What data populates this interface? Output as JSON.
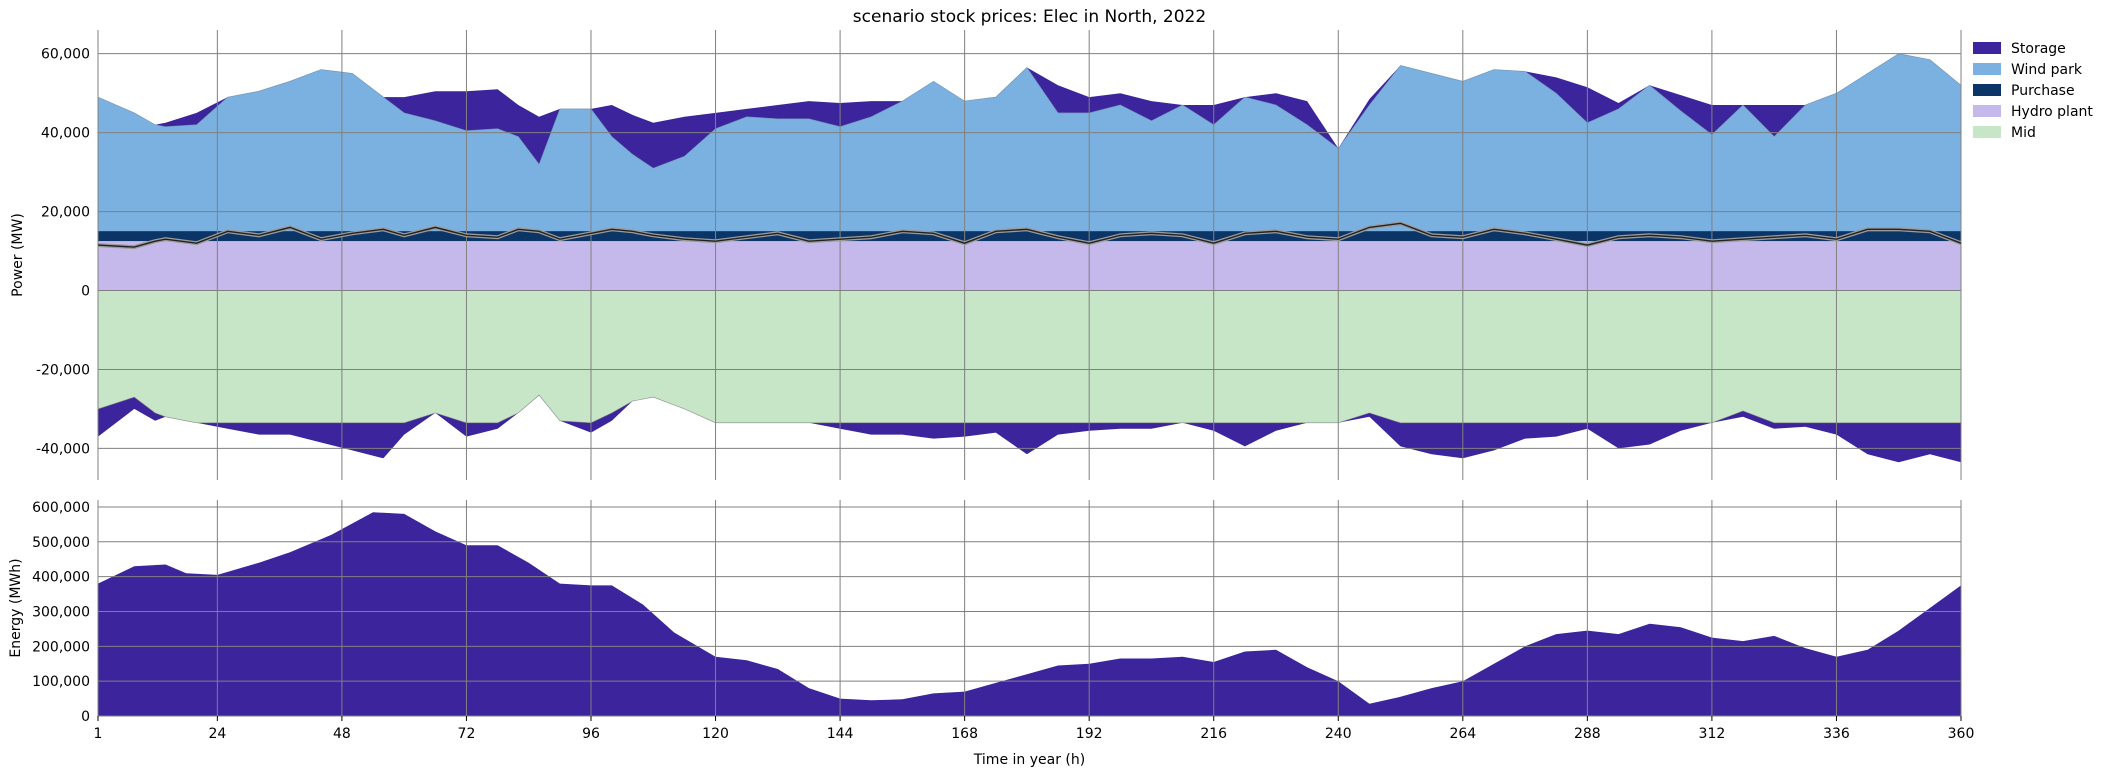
{
  "chart_data": [
    {
      "panel": "power",
      "type": "area",
      "title": "scenario stock prices: Elec in North, 2022",
      "xlabel": "",
      "ylabel": "Power (MW)",
      "xlim": [
        1,
        360
      ],
      "ylim": [
        -48000,
        66000
      ],
      "x_ticks": [
        1,
        24,
        48,
        72,
        96,
        120,
        144,
        168,
        192,
        216,
        240,
        264,
        288,
        312,
        336,
        360
      ],
      "y_ticks": [
        -40000,
        -20000,
        0,
        20000,
        40000,
        60000
      ],
      "y_tick_labels": [
        "-40,000",
        "-20,000",
        "0",
        "20,000",
        "40,000",
        "60,000"
      ],
      "grid": true,
      "legend_position": "outside top-right",
      "x": [
        1,
        8,
        12,
        14,
        20,
        26,
        32,
        38,
        44,
        50,
        56,
        60,
        66,
        72,
        78,
        82,
        86,
        90,
        96,
        100,
        104,
        108,
        114,
        120,
        126,
        132,
        138,
        144,
        150,
        156,
        162,
        168,
        174,
        180,
        186,
        192,
        198,
        204,
        210,
        216,
        222,
        228,
        234,
        240,
        246,
        252,
        258,
        264,
        270,
        276,
        282,
        288,
        294,
        300,
        306,
        312,
        318,
        324,
        330,
        336,
        342,
        348,
        354,
        360
      ],
      "series": [
        {
          "name": "Mid",
          "color": "#c7e5c7",
          "values": [
            -30000,
            -27000,
            -31000,
            -32000,
            -33500,
            -33500,
            -33500,
            -33500,
            -33500,
            -33500,
            -33500,
            -33500,
            -31000,
            -33500,
            -33500,
            -31000,
            -26500,
            -33000,
            -33500,
            -31000,
            -28000,
            -27000,
            -30000,
            -33500,
            -33500,
            -33500,
            -33500,
            -33500,
            -33500,
            -33500,
            -33500,
            -33500,
            -33500,
            -33500,
            -33500,
            -33500,
            -33500,
            -33500,
            -33500,
            -33500,
            -33500,
            -33500,
            -33500,
            -33500,
            -31000,
            -33500,
            -33500,
            -33500,
            -33500,
            -33500,
            -33500,
            -33500,
            -33500,
            -33500,
            -33500,
            -33500,
            -30500,
            -33500,
            -33500,
            -33500,
            -33500,
            -33500,
            -33500,
            -33500
          ]
        },
        {
          "name": "Hydro plant",
          "color": "#c5b9ec",
          "values": [
            12500,
            12500,
            12500,
            12500,
            12500,
            12500,
            12500,
            12500,
            12500,
            12500,
            12500,
            12500,
            12500,
            12500,
            12500,
            12500,
            12500,
            12500,
            12500,
            12500,
            12500,
            12500,
            12500,
            12500,
            12500,
            12500,
            12500,
            12500,
            12500,
            12500,
            12500,
            12500,
            12500,
            12500,
            12500,
            12500,
            12500,
            12500,
            12500,
            12500,
            12500,
            12500,
            12500,
            12500,
            12500,
            12500,
            12500,
            12500,
            12500,
            12500,
            12500,
            12500,
            12500,
            12500,
            12500,
            12500,
            12500,
            12500,
            12500,
            12500,
            12500,
            12500,
            12500,
            12500
          ]
        },
        {
          "name": "Purchase",
          "color": "#0b3566",
          "values": [
            2500,
            2500,
            2500,
            2500,
            2500,
            2500,
            2500,
            2500,
            2500,
            2500,
            2500,
            2500,
            2500,
            2500,
            2500,
            2500,
            2500,
            2500,
            2500,
            2500,
            2500,
            2500,
            2500,
            2500,
            2500,
            2500,
            2500,
            2500,
            2500,
            2500,
            2500,
            2500,
            2500,
            2500,
            2500,
            2500,
            2500,
            2500,
            2500,
            2500,
            2500,
            2500,
            2500,
            2500,
            2500,
            2500,
            2500,
            2500,
            2500,
            2500,
            2500,
            2500,
            2500,
            2500,
            2500,
            2500,
            2500,
            2500,
            2500,
            2500,
            2500,
            2500,
            2500,
            2500
          ]
        },
        {
          "name": "Wind park",
          "color": "#7ab1e0",
          "values": [
            34000,
            30000,
            27000,
            26500,
            27000,
            34000,
            35500,
            38000,
            41000,
            40000,
            34000,
            30000,
            28000,
            25500,
            26000,
            24000,
            17000,
            31000,
            31000,
            24000,
            19500,
            16000,
            19000,
            26000,
            29000,
            28500,
            28500,
            26500,
            29000,
            33000,
            38000,
            33000,
            34000,
            41500,
            30000,
            30000,
            32000,
            28000,
            32000,
            27000,
            34000,
            32000,
            27000,
            21000,
            32000,
            42000,
            40000,
            38000,
            41000,
            40500,
            35000,
            27500,
            31000,
            37000,
            30500,
            24500,
            32000,
            24000,
            32000,
            35000,
            40000,
            45000,
            43500,
            37000
          ]
        },
        {
          "name": "Storage",
          "color": "#3b249c",
          "values": [
            0,
            0,
            0,
            1000,
            3000,
            0,
            0,
            0,
            0,
            0,
            0,
            4000,
            7500,
            10000,
            10000,
            8000,
            12000,
            0,
            0,
            8000,
            10000,
            11500,
            10000,
            4000,
            2000,
            3500,
            4500,
            6000,
            4000,
            0,
            0,
            0,
            0,
            0,
            7000,
            4000,
            3000,
            5000,
            0,
            5000,
            0,
            3000,
            6000,
            0,
            1500,
            0,
            0,
            0,
            0,
            0,
            4000,
            9000,
            1500,
            0,
            4000,
            7500,
            0,
            8000,
            0,
            0,
            0,
            0,
            0,
            0
          ]
        },
        {
          "name": "Storage (charging)",
          "color": "#3b249c",
          "values": [
            -7000,
            -3000,
            -2000,
            0,
            0,
            -1500,
            -3000,
            -3000,
            -5000,
            -7000,
            -9000,
            -3000,
            0,
            -3500,
            -1500,
            0,
            0,
            0,
            -2500,
            -2000,
            0,
            0,
            0,
            0,
            0,
            0,
            0,
            -1500,
            -3000,
            -3000,
            -4000,
            -3500,
            -2500,
            -8000,
            -3000,
            -2000,
            -1500,
            -1500,
            0,
            -2000,
            -6000,
            -2000,
            0,
            0,
            -1000,
            -6000,
            -8000,
            -9000,
            -7000,
            -4000,
            -3500,
            -1500,
            -6500,
            -5500,
            -2000,
            0,
            -1500,
            -1500,
            -1000,
            -3000,
            -8000,
            -10000,
            -8000,
            -10000
          ]
        }
      ],
      "demand_line": {
        "color": "#222222",
        "values": [
          11500,
          11000,
          12500,
          13000,
          12000,
          15000,
          14000,
          16000,
          13000,
          14500,
          15500,
          14000,
          16000,
          14000,
          13500,
          15500,
          15000,
          13000,
          14500,
          15500,
          15000,
          14000,
          13000,
          12500,
          13500,
          14500,
          12500,
          13000,
          13500,
          15000,
          14500,
          12000,
          15000,
          15500,
          13500,
          12000,
          14000,
          14500,
          14000,
          12000,
          14500,
          15000,
          13500,
          13000,
          16000,
          17000,
          14000,
          13500,
          15500,
          14500,
          13000,
          11500,
          13500,
          14000,
          13500,
          12500,
          13000,
          13500,
          14000,
          13000,
          15500,
          15500,
          15000,
          12000
        ]
      }
    },
    {
      "panel": "energy",
      "type": "area",
      "xlabel": "Time in year (h)",
      "ylabel": "Energy (MWh)",
      "xlim": [
        1,
        360
      ],
      "ylim": [
        0,
        620000
      ],
      "x_ticks": [
        1,
        24,
        48,
        72,
        96,
        120,
        144,
        168,
        192,
        216,
        240,
        264,
        288,
        312,
        336,
        360
      ],
      "y_ticks": [
        0,
        100000,
        200000,
        300000,
        400000,
        500000,
        600000
      ],
      "y_tick_labels": [
        "0",
        "100,000",
        "200,000",
        "300,000",
        "400,000",
        "500,000",
        "600,000"
      ],
      "grid": true,
      "x": [
        1,
        8,
        14,
        18,
        24,
        32,
        38,
        46,
        54,
        60,
        66,
        72,
        78,
        84,
        90,
        96,
        100,
        106,
        112,
        120,
        126,
        132,
        138,
        144,
        150,
        156,
        162,
        168,
        174,
        180,
        186,
        192,
        198,
        204,
        210,
        216,
        222,
        228,
        234,
        240,
        246,
        252,
        258,
        264,
        270,
        276,
        282,
        288,
        294,
        300,
        306,
        312,
        318,
        324,
        330,
        336,
        342,
        348,
        354,
        360
      ],
      "series": [
        {
          "name": "Storage",
          "color": "#3b249c",
          "values": [
            380000,
            430000,
            435000,
            410000,
            405000,
            440000,
            470000,
            520000,
            585000,
            580000,
            530000,
            490000,
            490000,
            440000,
            380000,
            375000,
            375000,
            320000,
            240000,
            170000,
            160000,
            135000,
            80000,
            50000,
            45000,
            48000,
            65000,
            70000,
            95000,
            120000,
            145000,
            150000,
            165000,
            165000,
            170000,
            155000,
            185000,
            190000,
            140000,
            100000,
            35000,
            55000,
            80000,
            100000,
            150000,
            200000,
            235000,
            245000,
            235000,
            265000,
            255000,
            225000,
            215000,
            230000,
            195000,
            170000,
            190000,
            245000,
            310000,
            375000
          ]
        }
      ]
    }
  ]
}
